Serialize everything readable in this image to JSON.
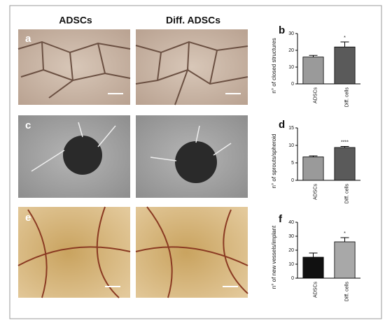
{
  "column_headers": [
    "ADSCs",
    "Diff. ADSCs"
  ],
  "image_panels": [
    "a",
    "c",
    "e"
  ],
  "chart_data": [
    {
      "type": "bar",
      "panel": "b",
      "y_label": "n° of closed structures",
      "categories": [
        "ADSCs",
        "Diff. cells"
      ],
      "values": [
        16,
        22
      ],
      "errors": [
        1,
        3
      ],
      "colors": [
        "#9a9a9a",
        "#5a5a5a"
      ],
      "significance": [
        null,
        "*"
      ],
      "ylim": [
        0,
        30
      ],
      "yticks": [
        0,
        10,
        20,
        30
      ]
    },
    {
      "type": "bar",
      "panel": "d",
      "y_label": "n° of sprouts/spheroid",
      "categories": [
        "ADSCs",
        "Diff. cells"
      ],
      "values": [
        6.7,
        9.4
      ],
      "errors": [
        0.3,
        0.3
      ],
      "colors": [
        "#9a9a9a",
        "#5a5a5a"
      ],
      "significance": [
        null,
        "****"
      ],
      "ylim": [
        0,
        15
      ],
      "yticks": [
        0,
        5,
        10,
        15
      ]
    },
    {
      "type": "bar",
      "panel": "f",
      "y_label": "n° of new vessels/implant",
      "categories": [
        "ADSCs",
        "Diff. cells"
      ],
      "values": [
        15,
        26
      ],
      "errors": [
        3,
        3
      ],
      "colors": [
        "#111111",
        "#a8a8a8"
      ],
      "significance": [
        null,
        "*"
      ],
      "ylim": [
        0,
        40
      ],
      "yticks": [
        0,
        10,
        20,
        30,
        40
      ]
    }
  ]
}
